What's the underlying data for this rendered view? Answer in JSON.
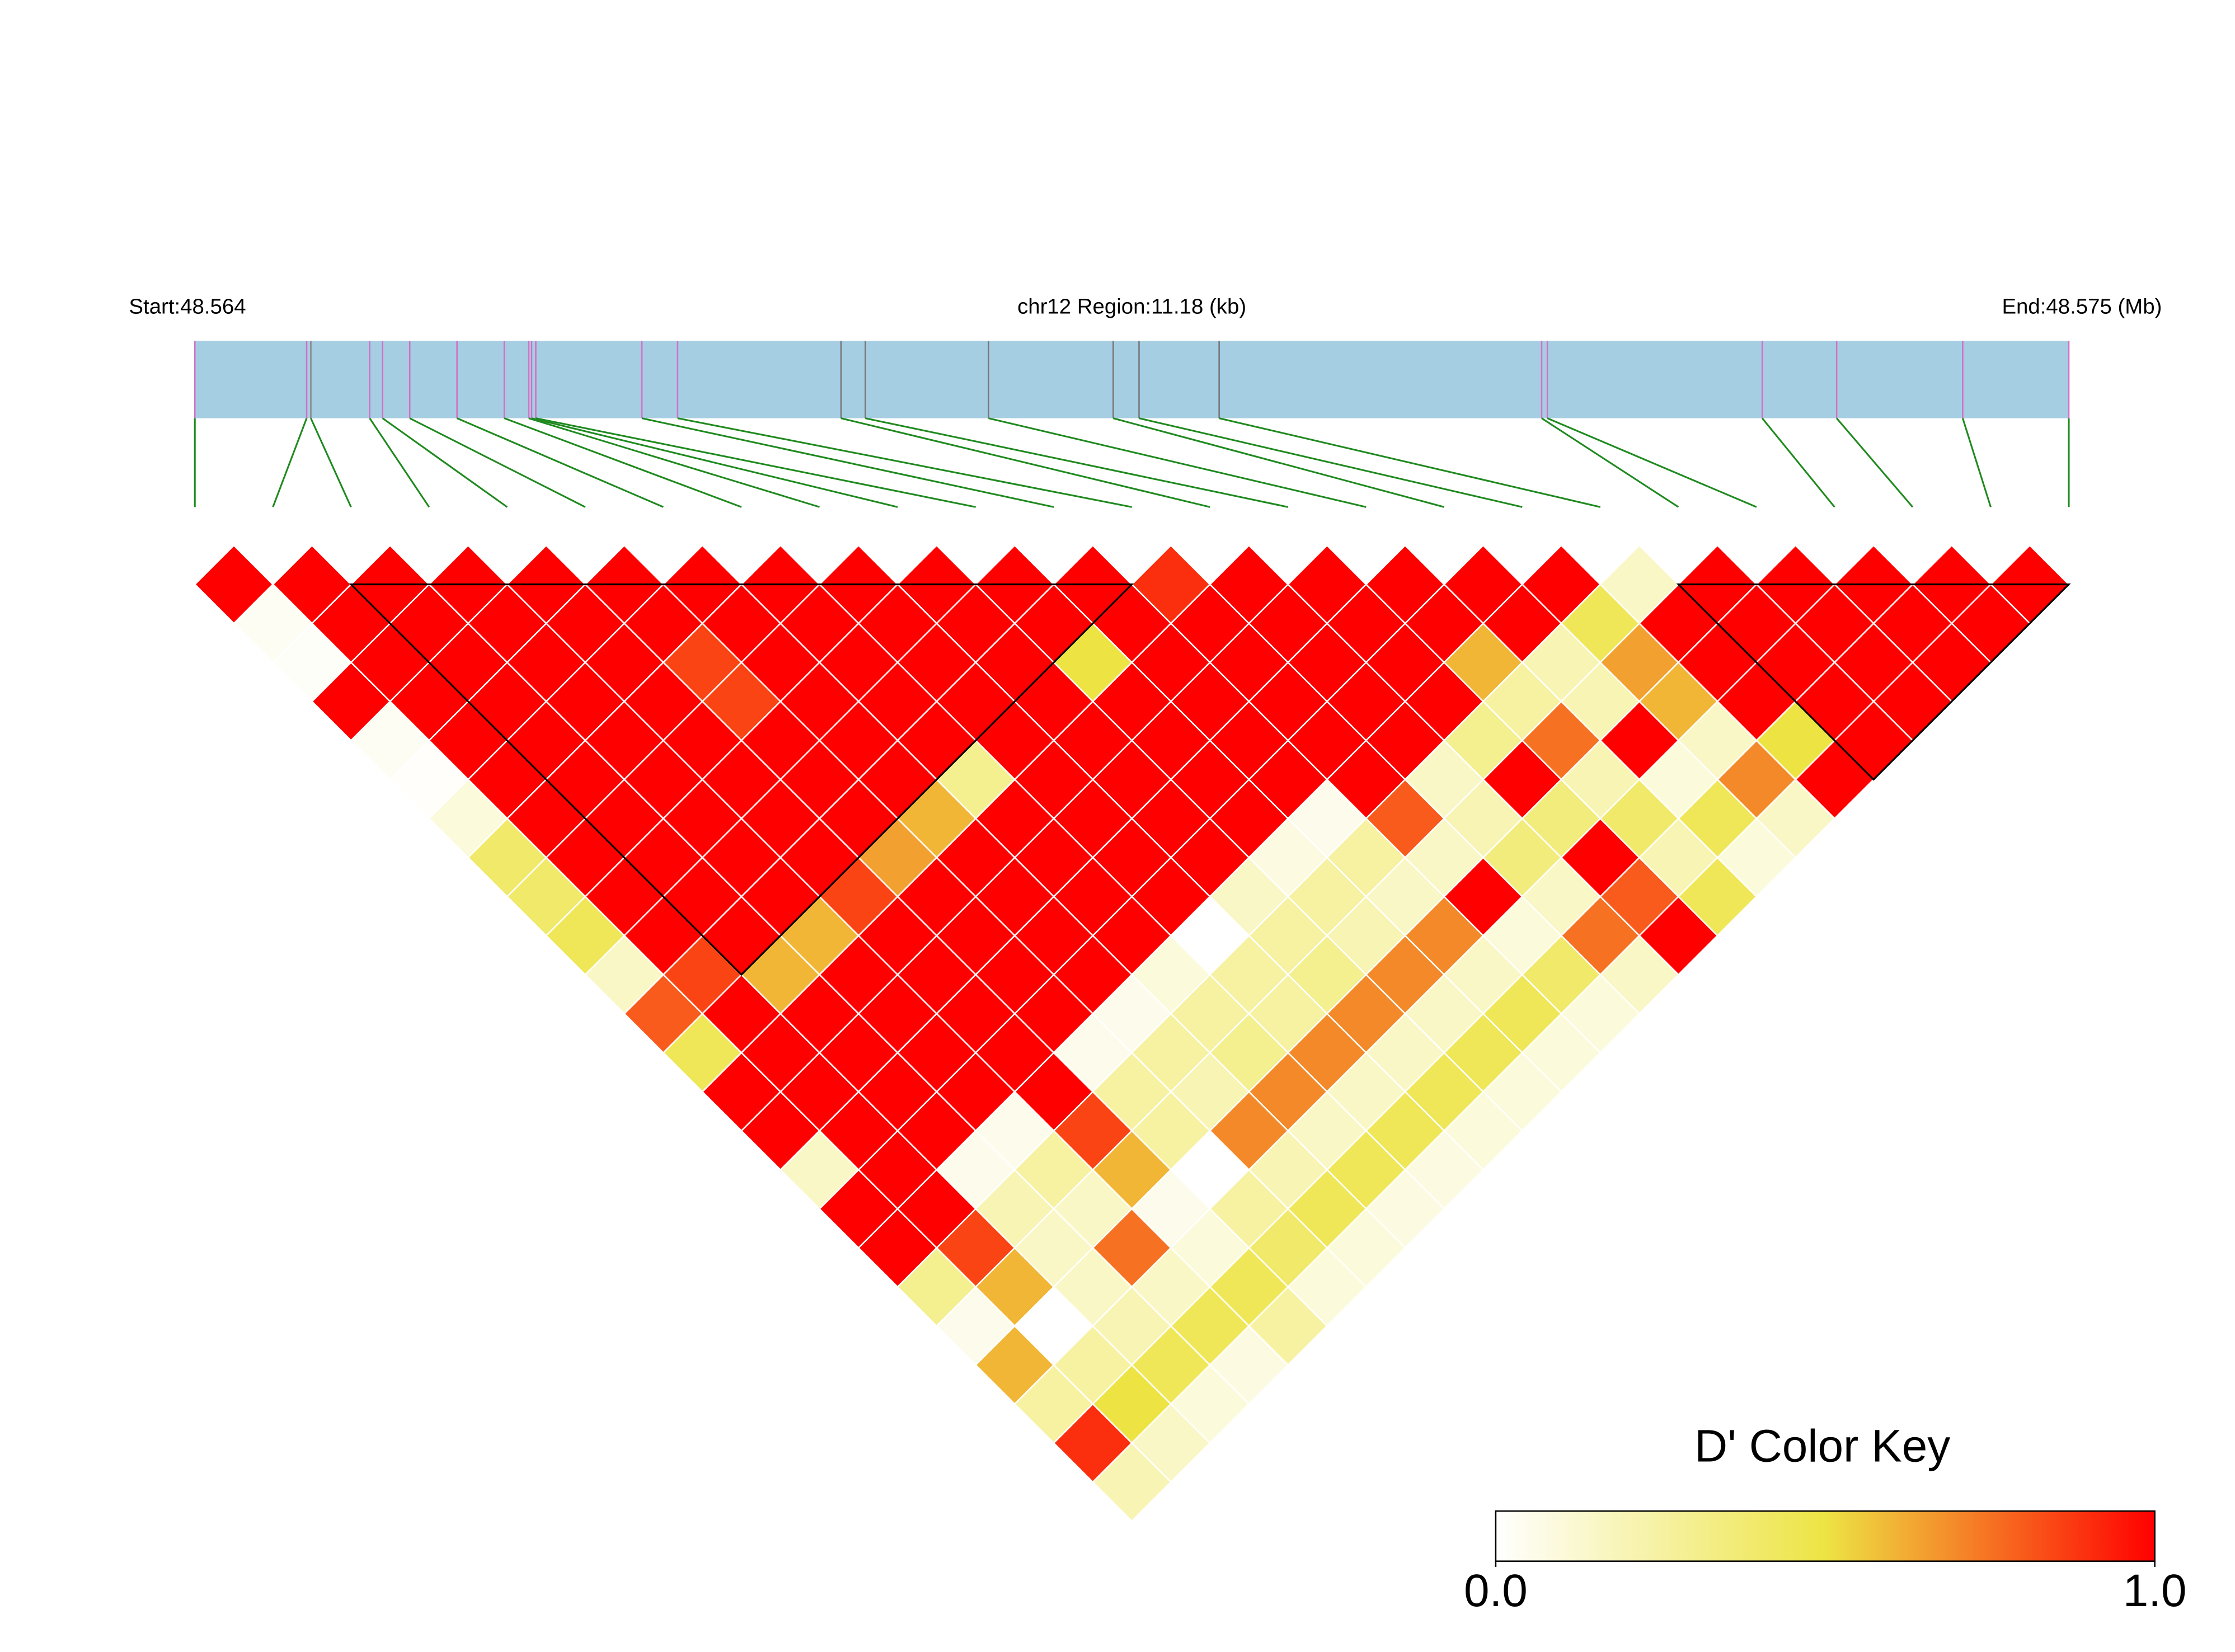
{
  "chart_data": {
    "type": "ld-heatmap",
    "title_left": "Start:48.564",
    "title_center": "chr12 Region:11.18 (kb)",
    "title_right": "End:48.575 (Mb)",
    "xlim": [
      0,
      11.18
    ],
    "snp_positions": [
      0,
      0.667,
      0.692,
      1.043,
      1.12,
      1.282,
      1.564,
      1.846,
      1.992,
      2.009,
      2.034,
      2.667,
      2.88,
      3.855,
      4.0,
      4.735,
      5.479,
      5.633,
      6.111,
      8.035,
      8.069,
      9.351,
      9.795,
      10.547,
      11.18
    ],
    "snp_line_colors": [
      "#d36fc6",
      "#d36fc6",
      "#888888",
      "#d36fc6",
      "#d36fc6",
      "#d36fc6",
      "#d36fc6",
      "#d36fc6",
      "#d36fc6",
      "#d36fc6",
      "#d36fc6",
      "#d36fc6",
      "#d36fc6",
      "#777777",
      "#777777",
      "#777777",
      "#777777",
      "#777777",
      "#777777",
      "#d36fc6",
      "#d36fc6",
      "#d36fc6",
      "#d36fc6",
      "#d36fc6",
      "#d36fc6"
    ],
    "track_color": "#a6cee3",
    "connector_color": "#1f8a1f",
    "dprime": [
      [
        1,
        1,
        1,
        1,
        1,
        1,
        1,
        1,
        1,
        1,
        1,
        1,
        0.9,
        1,
        1,
        1,
        1,
        1,
        0.15,
        1,
        1,
        1,
        1,
        1
      ],
      [
        0.03,
        1,
        1,
        1,
        1,
        1,
        1,
        1,
        1,
        1,
        1,
        1,
        1,
        1,
        1,
        1,
        1,
        0.45,
        1,
        1,
        1,
        1,
        1
      ],
      [
        0.02,
        1,
        1,
        1,
        1,
        0.85,
        1,
        1,
        1,
        1,
        0.5,
        1,
        1,
        1,
        1,
        0.6,
        0.2,
        0.65,
        1,
        1,
        1,
        1
      ],
      [
        1,
        1,
        1,
        1,
        1,
        0.85,
        1,
        1,
        1,
        1,
        1,
        1,
        1,
        1,
        1,
        0.25,
        0.2,
        0.6,
        1,
        1,
        1
      ],
      [
        0.03,
        1,
        1,
        1,
        1,
        1,
        1,
        1,
        1,
        1,
        1,
        1,
        1,
        1,
        0.3,
        0.75,
        1,
        0.15,
        0.5,
        1
      ],
      [
        0.01,
        1,
        1,
        1,
        1,
        1,
        1,
        0.3,
        1,
        1,
        1,
        1,
        1,
        0.15,
        1,
        0.2,
        0.1,
        0.7,
        1
      ],
      [
        0.1,
        1,
        1,
        1,
        1,
        1,
        0.6,
        1,
        1,
        1,
        1,
        0.05,
        0.8,
        0.2,
        0.35,
        0.4,
        0.45,
        0.15
      ],
      [
        0.4,
        1,
        1,
        1,
        1,
        0.65,
        1,
        1,
        1,
        1,
        0.08,
        0.25,
        0.15,
        0.35,
        1,
        0.2,
        0.1
      ],
      [
        0.4,
        1,
        1,
        1,
        0.85,
        1,
        1,
        1,
        1,
        0.15,
        0.25,
        0.15,
        1,
        0.15,
        0.8,
        0.45
      ],
      [
        0.45,
        1,
        1,
        0.6,
        1,
        1,
        1,
        1,
        0,
        0.25,
        0.2,
        0.7,
        0.1,
        0.75,
        1
      ],
      [
        0.15,
        0.85,
        0.6,
        1,
        1,
        1,
        1,
        0.1,
        0.25,
        0.3,
        0.7,
        0.15,
        0.4,
        0.15
      ],
      [
        0.8,
        1,
        1,
        1,
        1,
        1,
        0.05,
        0.25,
        0.25,
        0.7,
        0.15,
        0.45,
        0.1
      ],
      [
        0.45,
        1,
        1,
        1,
        1,
        0.05,
        0.25,
        0.3,
        0.7,
        0.15,
        0.45,
        0.1
      ],
      [
        1,
        1,
        1,
        1,
        1,
        0.25,
        0.2,
        0.7,
        0.15,
        0.45,
        0.1
      ],
      [
        1,
        1,
        1,
        0.05,
        0.85,
        0.25,
        0.7,
        0.15,
        0.45,
        0.1
      ],
      [
        0.15,
        1,
        0.05,
        0.25,
        0.6,
        0,
        0.2,
        0.45,
        0.08
      ],
      [
        1,
        1,
        0.2,
        0.15,
        0.05,
        0.25,
        0.45,
        0.08
      ],
      [
        1,
        0.85,
        0.15,
        0.75,
        0.1,
        0.4,
        0.1
      ],
      [
        0.3,
        0.6,
        0.15,
        0.15,
        0.45,
        0.1
      ],
      [
        0.05,
        0,
        0.2,
        0.45,
        0.25
      ],
      [
        0.6,
        0.25,
        0.45,
        0.08
      ],
      [
        0.25,
        0.5,
        0.1
      ],
      [
        0.9,
        0.15
      ],
      [
        0.2
      ]
    ],
    "blocks": [
      [
        2,
        12
      ],
      [
        19,
        24
      ]
    ],
    "colormap": [
      "#ffffff",
      "#ede444",
      "#ff0000"
    ],
    "colorbar": {
      "title": "D' Color Key",
      "lim": [
        0,
        1
      ],
      "ticks": [
        {
          "value": 0,
          "label": "0.0"
        },
        {
          "value": 1,
          "label": "1.0"
        }
      ]
    }
  }
}
